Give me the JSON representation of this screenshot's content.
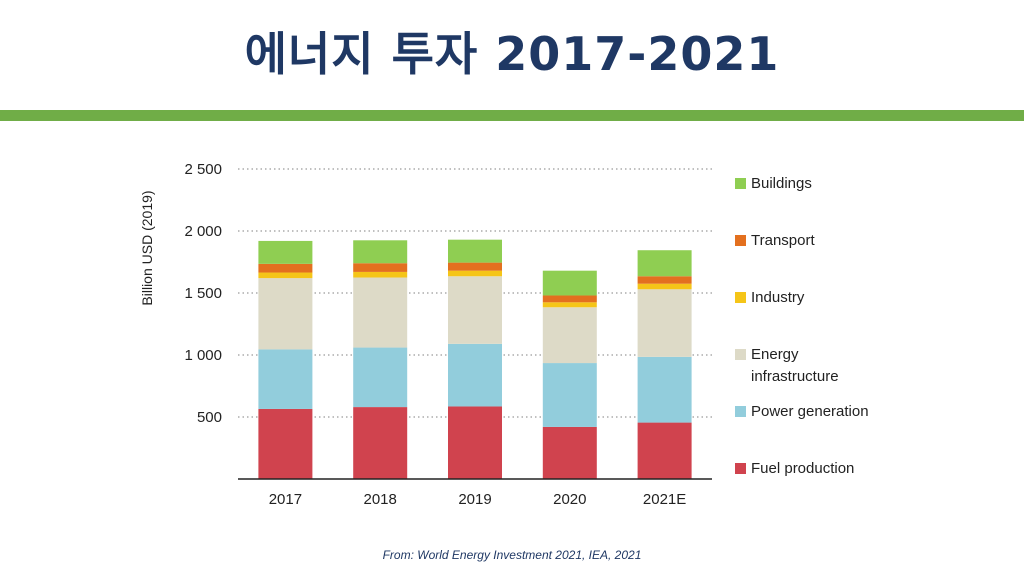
{
  "slide": {
    "title": "에너지 투자 2017-2021",
    "source": "From: World Energy Investment 2021, IEA, 2021",
    "accent_color": "#70ad47",
    "title_color": "#1f3864"
  },
  "chart_data": {
    "type": "bar",
    "stacked": true,
    "title": "",
    "xlabel": "",
    "ylabel": "Billion USD (2019)",
    "ylim": [
      0,
      2500
    ],
    "yticks": [
      500,
      1000,
      1500,
      2000,
      2500
    ],
    "ytick_labels": [
      "500",
      "1 000",
      "1 500",
      "2 000",
      "2 500"
    ],
    "grid": true,
    "legend_position": "right",
    "categories": [
      "2017",
      "2018",
      "2019",
      "2020",
      "2021E"
    ],
    "series": [
      {
        "name": "Fuel production",
        "color": "#d0434e",
        "values": [
          565,
          580,
          585,
          420,
          455
        ]
      },
      {
        "name": "Power generation",
        "color": "#92cddc",
        "values": [
          480,
          480,
          505,
          515,
          530
        ]
      },
      {
        "name": "Energy infrastructure",
        "color": "#dddac7",
        "values": [
          575,
          565,
          545,
          450,
          545
        ]
      },
      {
        "name": "Industry",
        "color": "#f5c518",
        "values": [
          45,
          45,
          45,
          40,
          45
        ]
      },
      {
        "name": "Transport",
        "color": "#e3701f",
        "values": [
          70,
          70,
          65,
          55,
          60
        ]
      },
      {
        "name": "Buildings",
        "color": "#8fce52",
        "values": [
          185,
          185,
          185,
          200,
          210
        ]
      }
    ],
    "legend_order": [
      "Buildings",
      "Transport",
      "Industry",
      "Energy infrastructure",
      "Power generation",
      "Fuel production"
    ],
    "legend_lines": {
      "Buildings": [
        "Buildings"
      ],
      "Transport": [
        "Transport"
      ],
      "Industry": [
        "Industry"
      ],
      "Energy infrastructure": [
        "Energy",
        "infrastructure"
      ],
      "Power generation": [
        "Power generation"
      ],
      "Fuel production": [
        "Fuel production"
      ]
    }
  }
}
